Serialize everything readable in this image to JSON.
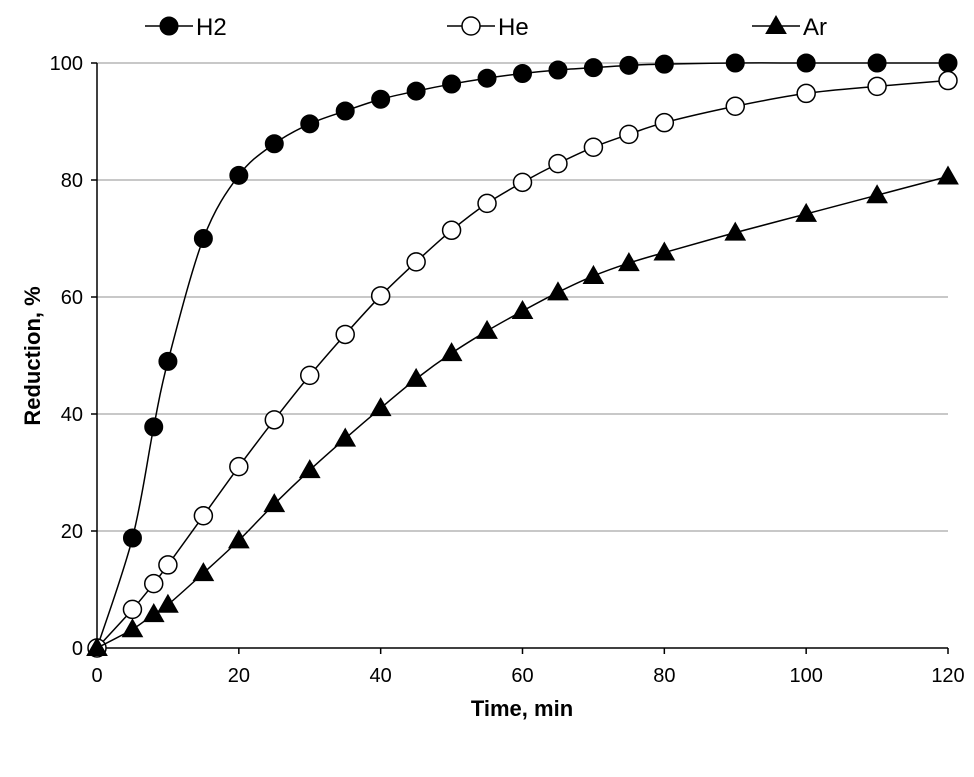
{
  "chart_data": {
    "type": "line",
    "title": "",
    "xlabel": "Time, min",
    "ylabel": "Reduction, %",
    "xlim": [
      0,
      120
    ],
    "ylim": [
      0,
      100
    ],
    "xticks": [
      0,
      20,
      40,
      60,
      80,
      100,
      120
    ],
    "yticks": [
      0,
      20,
      40,
      60,
      80,
      100
    ],
    "grid": "horizontal",
    "legend_position": "top",
    "series": [
      {
        "name": "H2",
        "marker": "filled-circle",
        "color": "#000000",
        "x": [
          0,
          5,
          8,
          10,
          15,
          20,
          25,
          30,
          35,
          40,
          45,
          50,
          55,
          60,
          65,
          70,
          75,
          80,
          90,
          100,
          110,
          120
        ],
        "y": [
          0,
          18.8,
          37.8,
          49,
          70,
          80.8,
          86.2,
          89.6,
          91.8,
          93.8,
          95.2,
          96.4,
          97.4,
          98.2,
          98.8,
          99.2,
          99.6,
          99.8,
          100,
          100,
          100,
          100
        ]
      },
      {
        "name": "He",
        "marker": "open-circle",
        "color": "#000000",
        "x": [
          0,
          5,
          8,
          10,
          15,
          20,
          25,
          30,
          35,
          40,
          45,
          50,
          55,
          60,
          65,
          70,
          75,
          80,
          90,
          100,
          110,
          120
        ],
        "y": [
          0,
          6.6,
          11,
          14.2,
          22.6,
          31,
          39,
          46.6,
          53.6,
          60.2,
          66,
          71.4,
          76,
          79.6,
          82.8,
          85.6,
          87.8,
          89.8,
          92.6,
          94.8,
          96,
          97
        ]
      },
      {
        "name": "Ar",
        "marker": "filled-triangle",
        "color": "#000000",
        "x": [
          0,
          5,
          8,
          10,
          15,
          20,
          25,
          30,
          35,
          40,
          45,
          50,
          55,
          60,
          65,
          70,
          75,
          80,
          90,
          100,
          110,
          120
        ],
        "y": [
          0,
          3.2,
          5.8,
          7.4,
          12.8,
          18.4,
          24.6,
          30.4,
          35.8,
          41,
          46,
          50.4,
          54.2,
          57.6,
          60.8,
          63.6,
          65.8,
          67.6,
          71,
          74.2,
          77.4,
          80.6
        ]
      }
    ]
  }
}
